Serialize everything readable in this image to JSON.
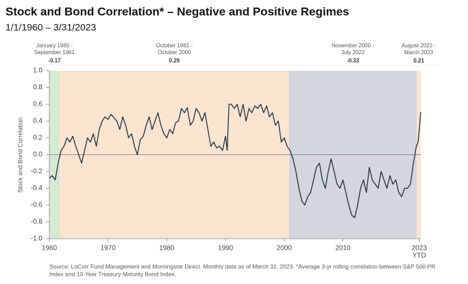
{
  "chart_data": {
    "type": "line",
    "title": "Stock and Bond Correlation* – Negative and Positive Regimes",
    "subtitle": "1/1/1960 – 3/31/2023",
    "y_label": "Stock and Bond Correlation",
    "x_tick_note": "YTD",
    "source_lines": [
      "Source: LoCorr Fund Management and Morningstar Direct. Monthly data as of March 31, 2023. *Average 3-yr rolling correlation between S&P 500 PR",
      "Index and 10-Year Treasury Maturity Bond Index."
    ],
    "xlim": [
      1960,
      2023.25
    ],
    "ylim": [
      -1,
      1
    ],
    "xticks": [
      1960,
      1970,
      1980,
      1990,
      2000,
      2010,
      2023
    ],
    "yticks": [
      {
        "value": 1,
        "label": "1.0"
      },
      0.8,
      0.6,
      0.4,
      0.2,
      {
        "value": 0,
        "label": "0.0"
      },
      -0.2,
      -0.4,
      -0.6,
      -0.8,
      {
        "value": -1,
        "label": "-1.0"
      }
    ],
    "line_color": "#1f2d3d",
    "regimes": [
      {
        "start": 1960,
        "end": 1961.75,
        "label_lines": [
          "January 1960 -",
          "September 1961"
        ],
        "average": -0.17,
        "color": "#d6e9d3"
      },
      {
        "start": 1961.75,
        "end": 2000.83,
        "label_lines": [
          "October 1961 -",
          "October 2000"
        ],
        "average": 0.29,
        "color": "#fbe4d0"
      },
      {
        "start": 2000.83,
        "end": 2022.58,
        "label_lines": [
          "November 2000 -",
          "July 2022"
        ],
        "average": -0.33,
        "color": "#d3d6dc"
      },
      {
        "start": 2022.58,
        "end": 2023.25,
        "label_lines": [
          "August 2022 -",
          "March 2023"
        ],
        "average": 0.21,
        "color": "#fbe4d0"
      }
    ],
    "x": [
      1960,
      1960.5,
      1961,
      1961.5,
      1962,
      1962.5,
      1963,
      1963.5,
      1964,
      1964.5,
      1965,
      1965.5,
      1966,
      1966.5,
      1967,
      1967.5,
      1968,
      1968.5,
      1969,
      1969.5,
      1970,
      1970.5,
      1971,
      1971.5,
      1972,
      1972.5,
      1973,
      1973.5,
      1974,
      1974.5,
      1975,
      1975.5,
      1976,
      1976.5,
      1977,
      1977.5,
      1978,
      1978.5,
      1979,
      1979.5,
      1980,
      1980.5,
      1981,
      1981.5,
      1982,
      1982.5,
      1983,
      1983.5,
      1984,
      1984.5,
      1985,
      1985.5,
      1986,
      1986.5,
      1987,
      1987.5,
      1988,
      1988.5,
      1989,
      1989.5,
      1990,
      1990.3,
      1990.6,
      1991,
      1991.5,
      1992,
      1992.5,
      1993,
      1993.5,
      1994,
      1994.5,
      1995,
      1995.5,
      1996,
      1996.5,
      1997,
      1997.5,
      1998,
      1998.5,
      1999,
      1999.5,
      2000,
      2000.5,
      2001,
      2001.5,
      2002,
      2002.5,
      2003,
      2003.5,
      2004,
      2004.5,
      2005,
      2005.5,
      2006,
      2006.5,
      2007,
      2007.5,
      2008,
      2008.5,
      2009,
      2009.5,
      2010,
      2010.5,
      2011,
      2011.5,
      2012,
      2012.5,
      2013,
      2013.5,
      2014,
      2014.5,
      2015,
      2015.5,
      2016,
      2016.5,
      2017,
      2017.5,
      2018,
      2018.5,
      2019,
      2019.5,
      2020,
      2020.5,
      2021,
      2021.5,
      2022,
      2022.5,
      2022.8,
      2023,
      2023.25
    ],
    "values": [
      -0.28,
      -0.25,
      -0.3,
      -0.1,
      0.05,
      0.1,
      0.2,
      0.15,
      0.22,
      0.1,
      0.0,
      -0.1,
      0.05,
      0.2,
      0.15,
      0.25,
      0.1,
      0.3,
      0.4,
      0.45,
      0.42,
      0.48,
      0.44,
      0.4,
      0.3,
      0.45,
      0.35,
      0.2,
      0.25,
      0.1,
      0.0,
      0.18,
      0.22,
      0.35,
      0.45,
      0.3,
      0.4,
      0.5,
      0.35,
      0.25,
      0.2,
      0.3,
      0.25,
      0.38,
      0.4,
      0.55,
      0.5,
      0.56,
      0.35,
      0.4,
      0.55,
      0.5,
      0.4,
      0.5,
      0.3,
      0.1,
      0.15,
      0.08,
      0.1,
      0.05,
      0.22,
      0.05,
      0.6,
      0.6,
      0.55,
      0.6,
      0.45,
      0.6,
      0.4,
      0.55,
      0.5,
      0.58,
      0.55,
      0.6,
      0.5,
      0.58,
      0.45,
      0.5,
      0.35,
      0.4,
      0.15,
      0.2,
      0.1,
      0.05,
      -0.05,
      -0.2,
      -0.4,
      -0.55,
      -0.6,
      -0.5,
      -0.45,
      -0.3,
      -0.15,
      -0.1,
      -0.3,
      -0.4,
      -0.2,
      -0.05,
      -0.2,
      -0.35,
      -0.4,
      -0.3,
      -0.45,
      -0.6,
      -0.72,
      -0.75,
      -0.6,
      -0.4,
      -0.3,
      -0.45,
      -0.15,
      -0.3,
      -0.35,
      -0.4,
      -0.2,
      -0.3,
      -0.4,
      -0.25,
      -0.35,
      -0.3,
      -0.45,
      -0.5,
      -0.4,
      -0.4,
      -0.35,
      -0.1,
      0.1,
      0.15,
      0.3,
      0.51
    ]
  }
}
